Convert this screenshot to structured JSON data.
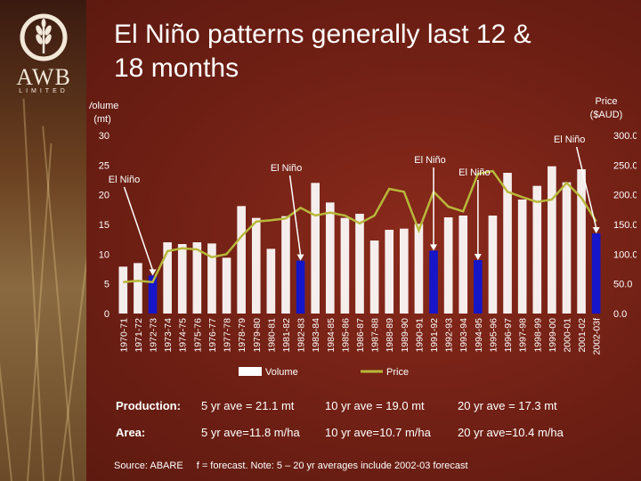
{
  "header": {
    "title_line1": "El Niño patterns generally last 12 &",
    "title_line2": "18 months"
  },
  "logo": {
    "text": "AWB",
    "subtext": "LIMITED"
  },
  "chart_data": {
    "type": "bar",
    "title": "",
    "ylabel_left": [
      "Volume",
      "(mt)"
    ],
    "ylabel_right": [
      "Price",
      "($AUD)"
    ],
    "ylim_left": [
      0,
      30
    ],
    "ylim_right": [
      0,
      300
    ],
    "left_ticks": [
      "0",
      "5",
      "10",
      "15",
      "20",
      "25",
      "30"
    ],
    "right_ticks": [
      "0.0",
      "50.0",
      "100.0",
      "150.0",
      "200.0",
      "250.0",
      "300.0"
    ],
    "categories": [
      "1970-71",
      "1971-72",
      "1972-73",
      "1973-74",
      "1974-75",
      "1975-76",
      "1976-77",
      "1977-78",
      "1978-79",
      "1979-80",
      "1980-81",
      "1981-82",
      "1982-83",
      "1983-84",
      "1984-85",
      "1985-86",
      "1986-87",
      "1987-88",
      "1988-89",
      "1989-90",
      "1990-91",
      "1991-92",
      "1992-93",
      "1993-94",
      "1994-95",
      "1995-96",
      "1996-97",
      "1997-98",
      "1998-99",
      "1999-00",
      "2000-01",
      "2001-02",
      "2002-03f"
    ],
    "series": [
      {
        "name": "Volume",
        "color": "#ffffff",
        "highlight_color": "#1616c8",
        "highlight_indices": [
          2,
          12,
          21,
          24,
          32
        ],
        "values": [
          7.9,
          8.5,
          6.4,
          12.0,
          11.7,
          12.0,
          11.8,
          9.4,
          18.1,
          16.1,
          10.9,
          16.4,
          8.9,
          22.0,
          18.7,
          16.1,
          16.8,
          12.3,
          14.1,
          14.3,
          15.1,
          10.6,
          16.2,
          16.5,
          9.0,
          16.5,
          23.7,
          19.2,
          21.5,
          24.8,
          22.1,
          24.3,
          13.5
        ]
      },
      {
        "name": "Price",
        "color": "#b8b83a",
        "values": [
          53,
          55,
          53,
          105,
          110,
          108,
          95,
          100,
          130,
          155,
          157,
          160,
          178,
          165,
          170,
          165,
          152,
          165,
          210,
          205,
          140,
          205,
          180,
          172,
          235,
          240,
          205,
          196,
          188,
          192,
          220,
          195,
          155
        ]
      }
    ],
    "annotations": [
      {
        "label": "El Niño",
        "index": 2
      },
      {
        "label": "El Niño",
        "index": 12
      },
      {
        "label": "El Niño",
        "index": 21
      },
      {
        "label": "El Niño",
        "index": 24
      },
      {
        "label": "El Niño",
        "index": 32
      }
    ],
    "legend": {
      "position": "bottom",
      "items": [
        "Volume",
        "Price"
      ]
    }
  },
  "stats": {
    "production": {
      "label": "Production:",
      "v5": "5 yr ave = 21.1 mt",
      "v10": "10 yr ave = 19.0 mt",
      "v20": "20 yr ave = 17.3 mt"
    },
    "area": {
      "label": "Area:",
      "v5": "5 yr ave=11.8 m/ha",
      "v10": "10 yr ave=10.7 m/ha",
      "v20": "20 yr ave=10.4 m/ha"
    }
  },
  "footer": {
    "source": "Source: ABARE",
    "note": "f = forecast.  Note: 5 – 20 yr averages include 2002-03 forecast"
  }
}
